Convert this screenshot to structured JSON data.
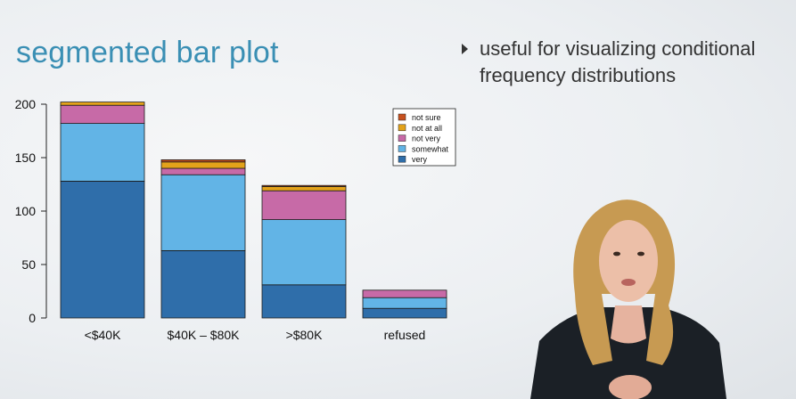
{
  "slide": {
    "title": "segmented bar plot",
    "bullet": "useful for visualizing conditional frequency distributions"
  },
  "chart_data": {
    "type": "bar",
    "stacked": true,
    "categories": [
      "<$40K",
      "$40K – $80K",
      ">$80K",
      "refused"
    ],
    "series": [
      {
        "name": "very",
        "color": "#2f6eaa",
        "values": [
          128,
          63,
          31,
          9
        ]
      },
      {
        "name": "somewhat",
        "color": "#62b4e6",
        "values": [
          54,
          71,
          61,
          10
        ]
      },
      {
        "name": "not very",
        "color": "#c76aa7",
        "values": [
          17,
          6,
          27,
          7
        ]
      },
      {
        "name": "not at all",
        "color": "#e3a21a",
        "values": [
          3,
          6,
          4,
          0
        ]
      },
      {
        "name": "not sure",
        "color": "#c7511f",
        "values": [
          0,
          2,
          1,
          0
        ]
      }
    ],
    "legend_order": [
      "not sure",
      "not at all",
      "not very",
      "somewhat",
      "very"
    ],
    "yticks": [
      0,
      50,
      100,
      150,
      200
    ],
    "ylim": [
      0,
      200
    ],
    "legend": "top-right",
    "grid": false
  }
}
